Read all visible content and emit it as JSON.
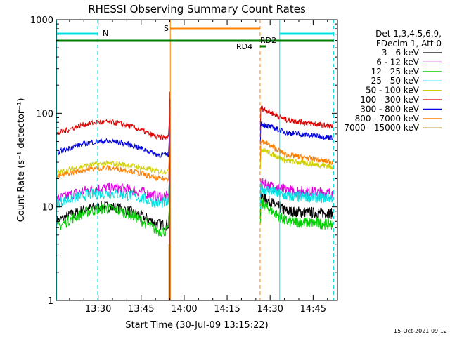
{
  "chart_data": {
    "type": "line",
    "title": "RHESSI Observing Summary Count Rates",
    "xlabel": "Start Time (30-Jul-09 13:15:22)",
    "ylabel": "Count Rate (s⁻¹ detector⁻¹)",
    "yscale": "log",
    "ylim": [
      1,
      1000
    ],
    "xlim": [
      "13:15:22",
      "14:53:30"
    ],
    "x_ticks": [
      "13:30",
      "13:45",
      "14:00",
      "14:15",
      "14:30",
      "14:45"
    ],
    "y_ticks": [
      "1",
      "10",
      "100",
      "1000"
    ],
    "timestamp": "15-Oct-2021 09:12",
    "legend": {
      "placement": "right",
      "header": [
        "Det 1,3,4,5,6,9,",
        "FDecim 1, Att 0"
      ],
      "entries": [
        {
          "label": "3 - 6 keV",
          "color": "#000000"
        },
        {
          "label": "6 - 12 keV",
          "color": "#e000e0"
        },
        {
          "label": "12 - 25 keV",
          "color": "#00d000"
        },
        {
          "label": "25 - 50 keV",
          "color": "#00e0e0"
        },
        {
          "label": "50 - 100 keV",
          "color": "#d0d000"
        },
        {
          "label": "100 - 300 keV",
          "color": "#e00000"
        },
        {
          "label": "300 - 800 keV",
          "color": "#0000e0"
        },
        {
          "label": "800 - 7000 keV",
          "color": "#ff8000"
        },
        {
          "label": "7000 - 15000 keV",
          "color": "#a07800"
        }
      ]
    },
    "series": [
      {
        "name": "3 - 6 keV",
        "color": "#000000",
        "pre": [
          7,
          10,
          6.5
        ],
        "post": [
          13,
          9,
          8.5
        ]
      },
      {
        "name": "6 - 12 keV",
        "color": "#e000e0",
        "pre": [
          12,
          16,
          13
        ],
        "post": [
          18,
          15,
          14
        ]
      },
      {
        "name": "12 - 25 keV",
        "color": "#00d000",
        "pre": [
          6,
          9.5,
          5.5
        ],
        "post": [
          11,
          7,
          6.5
        ]
      },
      {
        "name": "25 - 50 keV",
        "color": "#00e0e0",
        "pre": [
          11,
          14,
          11
        ],
        "post": [
          16,
          13,
          12.5
        ]
      },
      {
        "name": "50 - 100 keV",
        "color": "#d0d000",
        "pre": [
          23,
          29,
          24
        ],
        "post": [
          42,
          31,
          27
        ]
      },
      {
        "name": "100 - 300 keV",
        "color": "#e00000",
        "pre": [
          60,
          80,
          55
        ],
        "post": [
          115,
          85,
          72
        ]
      },
      {
        "name": "300 - 800 keV",
        "color": "#0000e0",
        "pre": [
          38,
          50,
          36
        ],
        "post": [
          78,
          62,
          55
        ]
      },
      {
        "name": "800 - 7000 keV",
        "color": "#ff8000",
        "pre": [
          21,
          26,
          20
        ],
        "post": [
          52,
          36,
          30
        ]
      },
      {
        "name": "7000 - 15000 keV",
        "color": "#a07800",
        "pre": [],
        "post": []
      }
    ],
    "annotations": [
      {
        "label": "N",
        "color": "#00e0e0"
      },
      {
        "label": "S",
        "color": "#ff8000"
      },
      {
        "label": "RD4",
        "color": "#008000"
      },
      {
        "label": "RD2",
        "color": "#008000"
      }
    ]
  }
}
